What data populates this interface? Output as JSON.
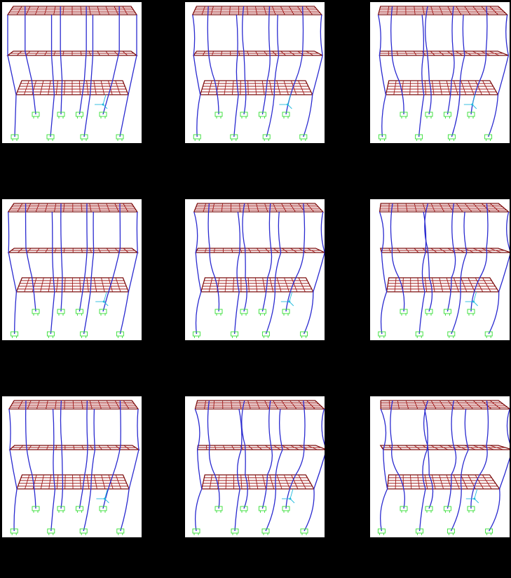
{
  "figure": {
    "description_note": "",
    "rows": 3,
    "cols": 3,
    "panels": [
      {
        "id": "mode-1",
        "sway": 0.0,
        "twist": 0.0
      },
      {
        "id": "mode-2",
        "sway": 0.4,
        "twist": 0.3
      },
      {
        "id": "mode-3",
        "sway": 0.3,
        "twist": 0.6
      },
      {
        "id": "mode-4",
        "sway": 0.2,
        "twist": 0.0
      },
      {
        "id": "mode-5",
        "sway": 0.8,
        "twist": 0.4
      },
      {
        "id": "mode-6",
        "sway": 0.6,
        "twist": 0.8
      },
      {
        "id": "mode-7",
        "sway": 0.4,
        "twist": 0.1
      },
      {
        "id": "mode-8",
        "sway": 1.0,
        "twist": 0.6
      },
      {
        "id": "mode-9",
        "sway": 0.8,
        "twist": 1.0
      }
    ]
  },
  "colors": {
    "background": "#000000",
    "panel": "#ffffff",
    "slab_grid": "#a01818",
    "slab_edge": "#7a0c0c",
    "columns": "#2a2ad0",
    "supports": "#33dd33",
    "axes": "#22bbdd"
  },
  "icons": {
    "support": "fixed-support-icon",
    "axes": "global-axes-icon"
  }
}
